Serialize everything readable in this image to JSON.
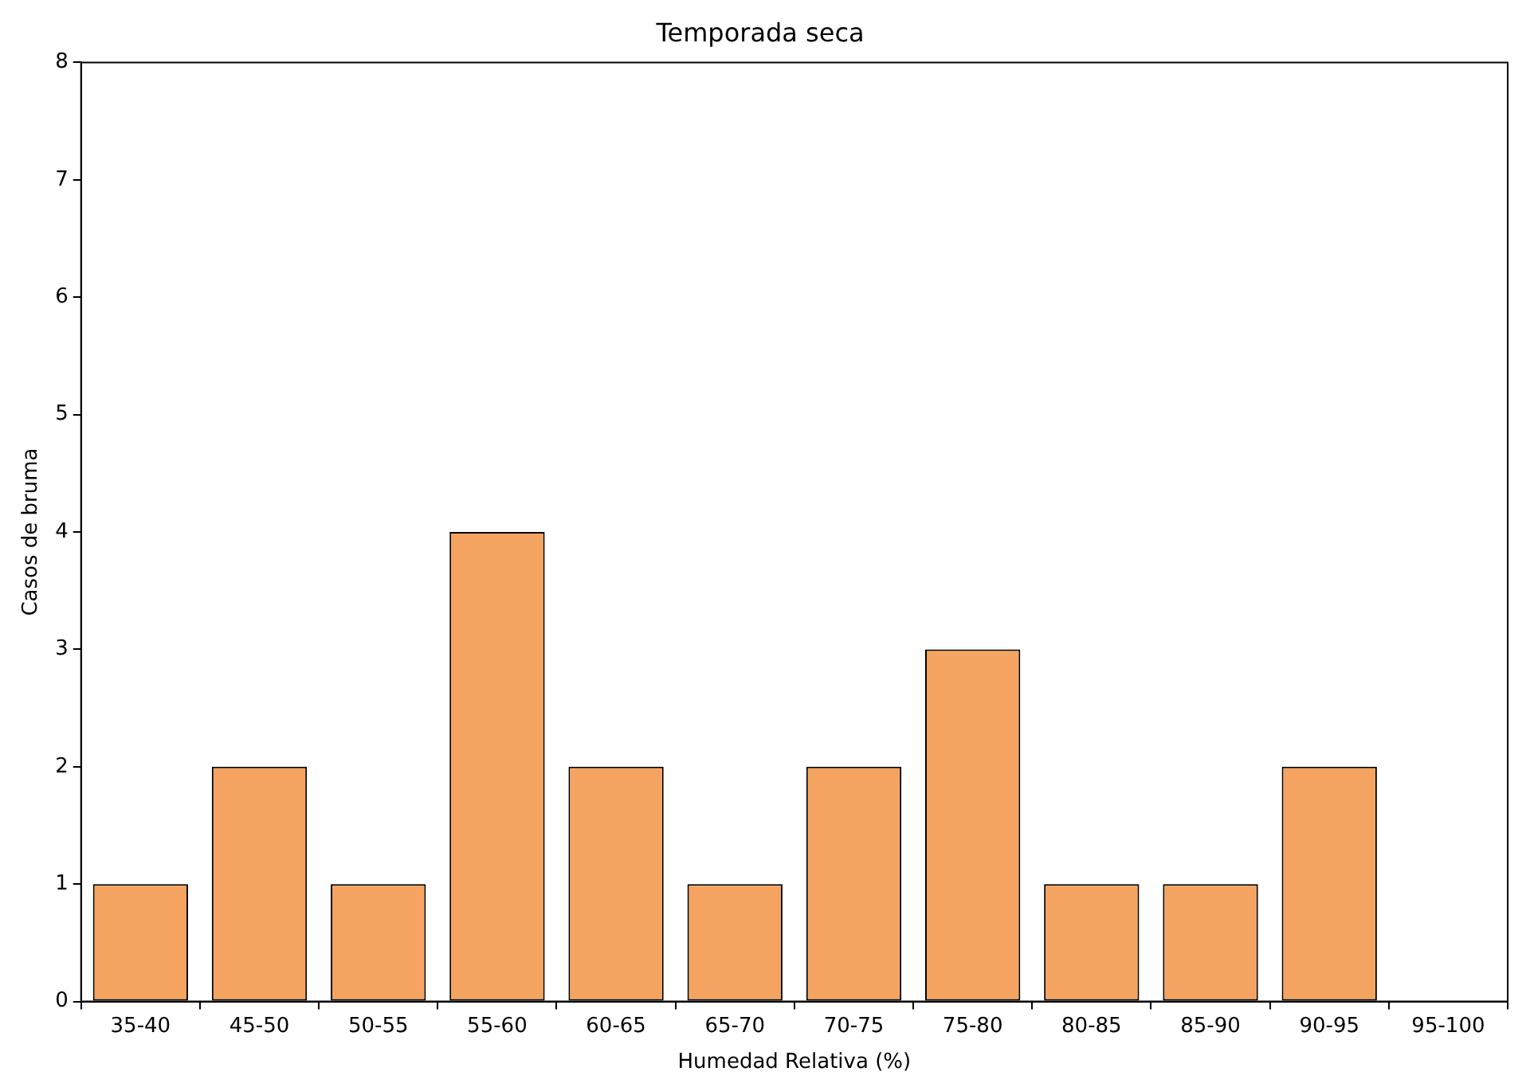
{
  "chart_data": {
    "type": "bar",
    "title": "Temporada seca",
    "xlabel": "Humedad Relativa (%)",
    "ylabel": "Casos de bruma",
    "categories": [
      "35-40",
      "45-50",
      "50-55",
      "55-60",
      "60-65",
      "65-70",
      "70-75",
      "75-80",
      "80-85",
      "85-90",
      "90-95",
      "95-100"
    ],
    "values": [
      1,
      2,
      1,
      4,
      2,
      1,
      2,
      3,
      1,
      1,
      2,
      0
    ],
    "color": "#f4a460",
    "ylim": [
      0,
      8
    ],
    "yticks": [
      0,
      1,
      2,
      3,
      4,
      5,
      6,
      7,
      8
    ],
    "grid": false
  }
}
